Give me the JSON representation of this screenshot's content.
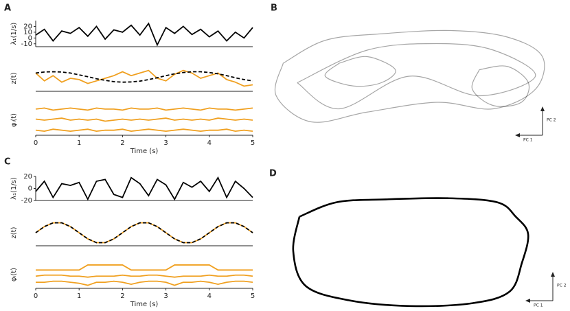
{
  "chart_data": [
    {
      "panel": "A",
      "type": "line",
      "ylabel": "λ₁(1/s)",
      "x": [
        0,
        0.2,
        0.4,
        0.6,
        0.8,
        1,
        1.2,
        1.4,
        1.6,
        1.8,
        2,
        2.2,
        2.4,
        2.6,
        2.8,
        3,
        3.2,
        3.4,
        3.6,
        3.8,
        4,
        4.2,
        4.4,
        4.6,
        4.8,
        5
      ],
      "xlim": [
        0,
        5
      ],
      "ylim": [
        -15,
        30
      ],
      "yticks": [
        20,
        10,
        0,
        -10
      ],
      "series": [
        {
          "color": "#000000",
          "values": [
            5,
            15,
            -5,
            12,
            8,
            18,
            3,
            20,
            -2,
            14,
            10,
            22,
            5,
            25,
            -12,
            18,
            8,
            20,
            6,
            15,
            2,
            12,
            -5,
            10,
            0,
            18
          ]
        }
      ]
    },
    {
      "type": "line",
      "ylabel": "z(t)",
      "x": [
        0,
        0.2,
        0.4,
        0.6,
        0.8,
        1,
        1.2,
        1.4,
        1.6,
        1.8,
        2,
        2.2,
        2.4,
        2.6,
        2.8,
        3,
        3.2,
        3.4,
        3.6,
        3.8,
        4,
        4.2,
        4.4,
        4.6,
        4.8,
        5
      ],
      "xlim": [
        0,
        5
      ],
      "ylim": [
        0,
        1
      ],
      "series": [
        {
          "color": "#f0a020",
          "values": [
            0.7,
            0.4,
            0.6,
            0.35,
            0.5,
            0.45,
            0.3,
            0.4,
            0.5,
            0.6,
            0.75,
            0.6,
            0.7,
            0.8,
            0.5,
            0.4,
            0.65,
            0.8,
            0.7,
            0.5,
            0.6,
            0.7,
            0.45,
            0.35,
            0.2,
            0.25
          ]
        },
        {
          "color": "#000000",
          "dashed": true,
          "values": [
            0.7,
            0.74,
            0.75,
            0.74,
            0.7,
            0.63,
            0.56,
            0.48,
            0.42,
            0.37,
            0.35,
            0.36,
            0.39,
            0.45,
            0.52,
            0.6,
            0.67,
            0.72,
            0.75,
            0.75,
            0.72,
            0.67,
            0.6,
            0.52,
            0.45,
            0.4
          ]
        }
      ]
    },
    {
      "type": "line",
      "ylabel": "φᵢ(t)",
      "xlabel": "Time (s)",
      "x": [
        0,
        0.2,
        0.4,
        0.6,
        0.8,
        1,
        1.2,
        1.4,
        1.6,
        1.8,
        2,
        2.2,
        2.4,
        2.6,
        2.8,
        3,
        3.2,
        3.4,
        3.6,
        3.8,
        4,
        4.2,
        4.4,
        4.6,
        4.8,
        5
      ],
      "xlim": [
        0,
        5
      ],
      "xticks": [
        0,
        1,
        2,
        3,
        4,
        5
      ],
      "ylim": [
        0,
        3
      ],
      "series": [
        {
          "color": "#f0a020",
          "values": [
            2.6,
            2.7,
            2.5,
            2.6,
            2.7,
            2.6,
            2.5,
            2.7,
            2.6,
            2.6,
            2.5,
            2.7,
            2.6,
            2.6,
            2.7,
            2.5,
            2.6,
            2.7,
            2.6,
            2.5,
            2.7,
            2.6,
            2.6,
            2.5,
            2.6,
            2.7
          ]
        },
        {
          "color": "#f0a020",
          "values": [
            1.6,
            1.5,
            1.6,
            1.7,
            1.5,
            1.6,
            1.5,
            1.6,
            1.4,
            1.5,
            1.6,
            1.5,
            1.6,
            1.5,
            1.6,
            1.7,
            1.5,
            1.6,
            1.5,
            1.6,
            1.5,
            1.7,
            1.6,
            1.5,
            1.6,
            1.5
          ]
        },
        {
          "color": "#f0a020",
          "values": [
            0.5,
            0.4,
            0.6,
            0.5,
            0.4,
            0.5,
            0.6,
            0.4,
            0.5,
            0.5,
            0.6,
            0.4,
            0.5,
            0.6,
            0.5,
            0.4,
            0.5,
            0.6,
            0.5,
            0.4,
            0.5,
            0.5,
            0.6,
            0.4,
            0.5,
            0.4
          ]
        }
      ]
    },
    {
      "panel": "B",
      "type": "trajectory",
      "xlabel": "PC 1",
      "ylabel": "PC 2",
      "xlim": [
        -1,
        1
      ],
      "ylim": [
        -1,
        1
      ],
      "series": [
        {
          "color": "#000000",
          "x": [
            -0.9,
            -0.6,
            -0.2,
            0.3,
            0.7,
            0.95,
            0.9,
            0.6,
            0.2,
            -0.3,
            -0.7,
            -0.95,
            -0.9
          ],
          "y": [
            0.4,
            0.75,
            0.85,
            0.9,
            0.8,
            0.5,
            0,
            -0.3,
            -0.2,
            -0.35,
            -0.5,
            -0.1,
            0.4
          ]
        },
        {
          "color": "#000000",
          "x": [
            -0.5,
            -0.3,
            -0.1,
            -0.2,
            -0.4,
            -0.6,
            -0.5
          ],
          "y": [
            0.4,
            0.5,
            0.3,
            0.1,
            0.05,
            0.2,
            0.4
          ]
        },
        {
          "color": "#000000",
          "x": [
            0.5,
            0.7,
            0.85,
            0.8,
            0.6,
            0.45,
            0.5
          ],
          "y": [
            0.3,
            0.35,
            0.1,
            -0.2,
            -0.25,
            0,
            0.3
          ]
        },
        {
          "color": "#000000",
          "x": [
            -0.8,
            -0.3,
            0.2,
            0.6,
            0.9,
            0.5,
            0,
            -0.5,
            -0.8
          ],
          "y": [
            0.1,
            0.6,
            0.7,
            0.6,
            0.2,
            -0.1,
            0.2,
            -0.3,
            0.1
          ]
        }
      ]
    },
    {
      "panel": "C",
      "type": "line",
      "ylabel": "λ₁(1/s)",
      "x": [
        0,
        0.2,
        0.4,
        0.6,
        0.8,
        1,
        1.2,
        1.4,
        1.6,
        1.8,
        2,
        2.2,
        2.4,
        2.6,
        2.8,
        3,
        3.2,
        3.4,
        3.6,
        3.8,
        4,
        4.2,
        4.4,
        4.6,
        4.8,
        5
      ],
      "xlim": [
        0,
        5
      ],
      "ylim": [
        -20,
        20
      ],
      "yticks": [
        20,
        0,
        -20
      ],
      "series": [
        {
          "color": "#000000",
          "values": [
            -5,
            12,
            -15,
            8,
            5,
            10,
            -18,
            12,
            15,
            -10,
            -15,
            18,
            8,
            -12,
            15,
            6,
            -18,
            10,
            2,
            12,
            -5,
            18,
            -15,
            12,
            0,
            -15
          ]
        }
      ]
    },
    {
      "type": "line",
      "ylabel": "z(t)",
      "x": [
        0,
        0.2,
        0.4,
        0.6,
        0.8,
        1,
        1.2,
        1.4,
        1.6,
        1.8,
        2,
        2.2,
        2.4,
        2.6,
        2.8,
        3,
        3.2,
        3.4,
        3.6,
        3.8,
        4,
        4.2,
        4.4,
        4.6,
        4.8,
        5
      ],
      "xlim": [
        0,
        5
      ],
      "ylim": [
        0,
        1
      ],
      "series": [
        {
          "color": "#f0a020",
          "values": [
            0.5,
            0.735,
            0.88,
            0.88,
            0.735,
            0.5,
            0.265,
            0.12,
            0.12,
            0.265,
            0.5,
            0.735,
            0.88,
            0.88,
            0.735,
            0.5,
            0.265,
            0.12,
            0.12,
            0.265,
            0.5,
            0.735,
            0.88,
            0.88,
            0.735,
            0.5
          ]
        },
        {
          "color": "#000000",
          "dashed": true,
          "values": [
            0.5,
            0.735,
            0.88,
            0.88,
            0.735,
            0.5,
            0.265,
            0.12,
            0.12,
            0.265,
            0.5,
            0.735,
            0.88,
            0.88,
            0.735,
            0.5,
            0.265,
            0.12,
            0.12,
            0.265,
            0.5,
            0.735,
            0.88,
            0.88,
            0.735,
            0.5
          ]
        }
      ]
    },
    {
      "type": "line",
      "ylabel": "φᵢ(t)",
      "xlabel": "Time (s)",
      "x": [
        0,
        0.2,
        0.4,
        0.6,
        0.8,
        1,
        1.2,
        1.4,
        1.6,
        1.8,
        2,
        2.2,
        2.4,
        2.6,
        2.8,
        3,
        3.2,
        3.4,
        3.6,
        3.8,
        4,
        4.2,
        4.4,
        4.6,
        4.8,
        5
      ],
      "xlim": [
        0,
        5
      ],
      "xticks": [
        0,
        1,
        2,
        3,
        4,
        5
      ],
      "ylim": [
        0.5,
        3.2
      ],
      "series": [
        {
          "color": "#f0a020",
          "values": [
            2.3,
            2.3,
            2.3,
            2.3,
            2.3,
            2.3,
            2.8,
            2.8,
            2.8,
            2.8,
            2.8,
            2.3,
            2.3,
            2.3,
            2.3,
            2.3,
            2.8,
            2.8,
            2.8,
            2.8,
            2.8,
            2.3,
            2.3,
            2.3,
            2.3,
            2.3
          ]
        },
        {
          "color": "#f0a020",
          "values": [
            1.7,
            1.8,
            1.8,
            1.8,
            1.7,
            1.7,
            1.6,
            1.7,
            1.7,
            1.7,
            1.8,
            1.7,
            1.7,
            1.8,
            1.8,
            1.7,
            1.6,
            1.7,
            1.7,
            1.7,
            1.8,
            1.7,
            1.7,
            1.8,
            1.8,
            1.7
          ]
        },
        {
          "color": "#f0a020",
          "values": [
            1.1,
            1.1,
            1.2,
            1.2,
            1.1,
            1.0,
            0.8,
            1.1,
            1.1,
            1.2,
            1.1,
            0.9,
            1.1,
            1.2,
            1.2,
            1.1,
            0.8,
            1.1,
            1.1,
            1.2,
            1.1,
            0.9,
            1.1,
            1.2,
            1.2,
            1.1
          ]
        }
      ]
    },
    {
      "panel": "D",
      "type": "trajectory",
      "xlabel": "PC 1",
      "ylabel": "PC 2",
      "xlim": [
        -1,
        1
      ],
      "ylim": [
        -1,
        1
      ],
      "series": [
        {
          "color": "#000000",
          "opaque": true,
          "x": [
            -0.9,
            -0.6,
            -0.2,
            0.3,
            0.7,
            0.85,
            0.95,
            0.9,
            0.8,
            0.5,
            0.0,
            -0.5,
            -0.85,
            -0.95,
            -0.9
          ],
          "y": [
            0.6,
            0.85,
            0.9,
            0.92,
            0.85,
            0.6,
            0.3,
            -0.2,
            -0.7,
            -0.9,
            -0.95,
            -0.85,
            -0.6,
            0.0,
            0.6
          ]
        }
      ]
    }
  ]
}
